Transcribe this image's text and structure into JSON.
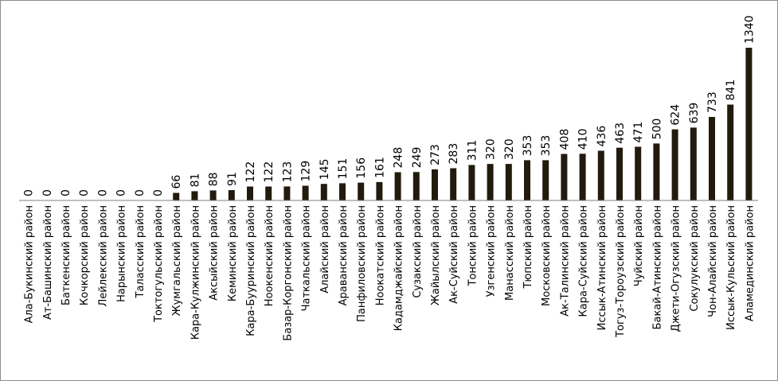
{
  "chart_data": {
    "type": "bar",
    "title": "",
    "xlabel": "",
    "ylabel": "",
    "ylim": [
      0,
      1340
    ],
    "grid": false,
    "legend": "none",
    "bar_color": "#231a0e",
    "axis_color": "#7f7f7f",
    "data_labels": true,
    "categories": [
      "Ала-Букинский район",
      "Ат-Башинский район",
      "Баткенский район",
      "Кочкорский район",
      "Лейлекский район",
      "Нарынский район",
      "Таласский район",
      "Токтогульский район",
      "Жумгальский район",
      "Кара-Кулжинский район",
      "Аксыйский район",
      "Кеминский район",
      "Кара-Бууринский район",
      "Ноокенский район",
      "Базар-Коргонский район",
      "Чаткальский район",
      "Алайский район",
      "Араванский район",
      "Панфиловский район",
      "Ноокатский район",
      "Кадамджайский район",
      "Сузакский район",
      "Жайылский район",
      "Ак-Суйский район",
      "Тонский район",
      "Узгенский район",
      "Манасский район",
      "Тюпский район",
      "Московский район",
      "Ак-Талинский район",
      "Кара-Суйский район",
      "Иссык-Атинский район",
      "Тогуз-Тороузский район",
      "Чуйский район",
      "Бакай-Атинский район",
      "Джети-Огузский район",
      "Сокулукский район",
      "Чон-Алайский район",
      "Иссык-Кульский район",
      "Аламединский район"
    ],
    "values": [
      0,
      0,
      0,
      0,
      0,
      0,
      0,
      0,
      66,
      81,
      88,
      91,
      122,
      122,
      123,
      129,
      145,
      151,
      156,
      161,
      248,
      249,
      273,
      283,
      311,
      320,
      320,
      353,
      353,
      408,
      410,
      436,
      463,
      471,
      500,
      624,
      639,
      733,
      841,
      1340
    ]
  }
}
